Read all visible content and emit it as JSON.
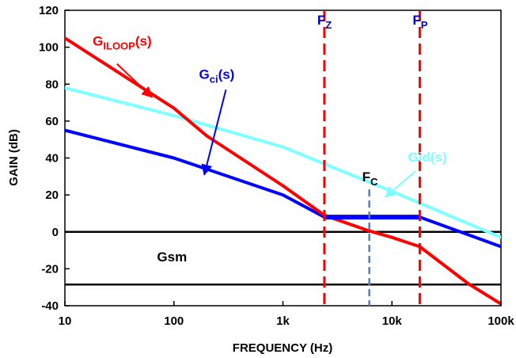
{
  "chart_data": {
    "type": "line",
    "xscale": "log",
    "xlabel": "FREQUENCY (Hz)",
    "ylabel": "GAIN (dB)",
    "xlim": [
      10,
      100000
    ],
    "ylim": [
      -40,
      120
    ],
    "grid": false,
    "x_ticks": [
      {
        "value": 10,
        "label": "10"
      },
      {
        "value": 100,
        "label": "100"
      },
      {
        "value": 1000,
        "label": "1k"
      },
      {
        "value": 10000,
        "label": "10k"
      },
      {
        "value": 100000,
        "label": "100k"
      }
    ],
    "y_ticks": [
      {
        "value": 120,
        "label": "120"
      },
      {
        "value": 100,
        "label": "100"
      },
      {
        "value": 80,
        "label": "80"
      },
      {
        "value": 60,
        "label": "60"
      },
      {
        "value": 40,
        "label": "40"
      },
      {
        "value": 20,
        "label": "20"
      },
      {
        "value": 0,
        "label": "0"
      },
      {
        "value": -20,
        "label": "-20"
      },
      {
        "value": -40,
        "label": "-40"
      }
    ],
    "series": [
      {
        "key": "giloop",
        "color": "#ff0000",
        "x": [
          10,
          100,
          200,
          1000,
          2400,
          6200,
          10000,
          18000,
          50000,
          100000
        ],
        "y": [
          105,
          67,
          52,
          25,
          9,
          0.5,
          -3,
          -8,
          -28,
          -39
        ]
      },
      {
        "key": "gid",
        "color": "#7fffff",
        "x": [
          10,
          100,
          1000,
          10000,
          100000
        ],
        "y": [
          78,
          63,
          46,
          22,
          -3
        ]
      },
      {
        "key": "gci",
        "color": "#0000ff",
        "x": [
          10,
          100,
          1000,
          2400,
          18000,
          100000
        ],
        "y": [
          55,
          40,
          20,
          8,
          8,
          -8
        ]
      }
    ],
    "vertical_markers": [
      {
        "key": "fz",
        "x": 2400,
        "color": "#ff0000",
        "label_main": "F",
        "label_sub": "Z",
        "label_color": "#0000cc"
      },
      {
        "key": "fp",
        "x": 18000,
        "color": "#ff0000",
        "label_main": "F",
        "label_sub": "P",
        "label_color": "#0000cc"
      },
      {
        "key": "fc",
        "x": 6200,
        "color": "#4f7fbf",
        "y_top": 23,
        "label_main": "F",
        "label_sub": "C",
        "label_color": "#000000"
      }
    ],
    "horizontal_lines": [
      {
        "key": "zero",
        "y": 0,
        "color": "#000000"
      },
      {
        "key": "gsm",
        "y": -28.5,
        "color": "#000000"
      }
    ],
    "annotations": [
      {
        "key": "giloop",
        "main": "G",
        "sub": "ILOOP",
        "suffix": "(s)",
        "color": "#ff0000",
        "text_x": 18,
        "text_y": 101,
        "arrow_from": [
          30,
          91
        ],
        "arrow_to": [
          63,
          73
        ]
      },
      {
        "key": "gci",
        "main": "G",
        "sub": "ci",
        "suffix": "(s)",
        "color": "#0000ff",
        "text_x": 170,
        "text_y": 83,
        "arrow_from": [
          300,
          77
        ],
        "arrow_to": [
          190,
          31
        ]
      },
      {
        "key": "gid",
        "main": "Gid(s)",
        "sub": "",
        "suffix": "",
        "color": "#7fffff",
        "text_x": 14000,
        "text_y": 38,
        "arrow_from": [
          16500,
          33
        ],
        "arrow_to": [
          8700,
          19
        ]
      },
      {
        "key": "gsm",
        "main": "Gsm",
        "sub": "",
        "suffix": "",
        "color": "#000000",
        "text_x": 70,
        "text_y": -16,
        "arrow_from": null,
        "arrow_to": null
      }
    ]
  }
}
